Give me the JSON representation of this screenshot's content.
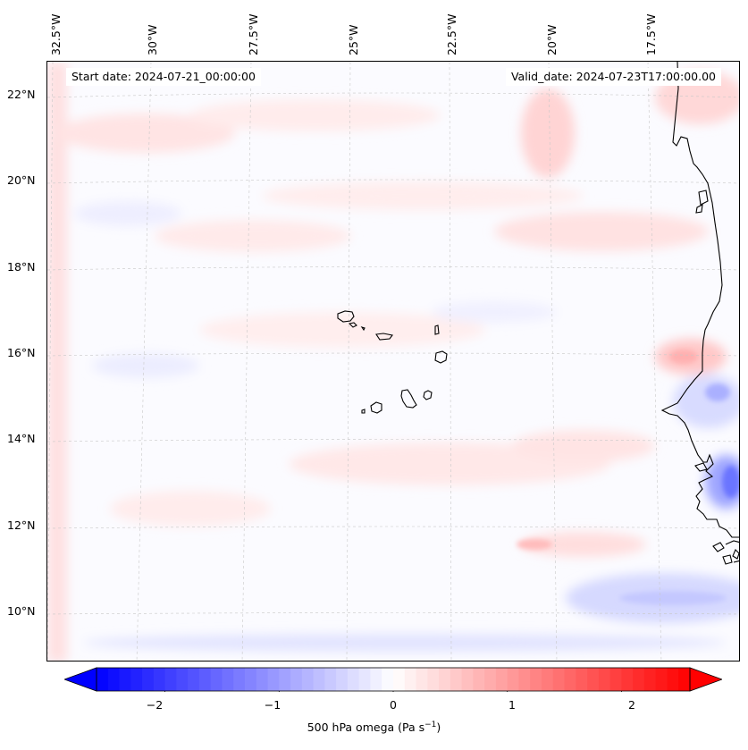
{
  "map": {
    "start_date": "Start date: 2024-07-21_00:00:00",
    "valid_date": "Valid_date: 2024-07-23T17:00:00.00",
    "lon_labels": [
      "32.5°W",
      "30°W",
      "27.5°W",
      "25°W",
      "22.5°W",
      "20°W",
      "17.5°W"
    ],
    "lat_labels": [
      "22°N",
      "20°N",
      "18°N",
      "16°N",
      "14°N",
      "12°N",
      "10°N"
    ],
    "region": "Cape Verde Islands and West African coast"
  },
  "colorbar": {
    "label_prefix": "500 hPa omega (Pa s",
    "label_exp": "−1",
    "label_suffix": ")",
    "ticks": [
      "−2",
      "−1",
      "0",
      "1",
      "2"
    ],
    "vmin": -2.6,
    "vmax": 2.6,
    "neg_color": "#0000ff",
    "pos_color": "#ff0000",
    "mid_color": "#ffffff"
  },
  "colors": {
    "coastline": "#000000",
    "gridline": "#c8c8c8"
  }
}
